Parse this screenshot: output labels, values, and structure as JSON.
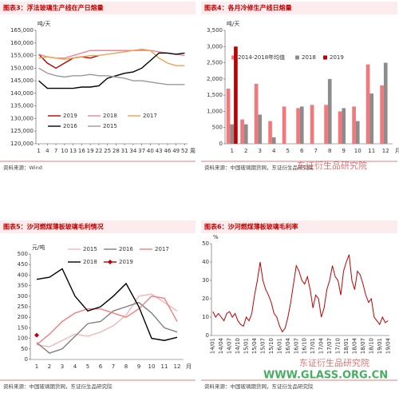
{
  "watermarks": [
    "东证衍生品研究院",
    "WWW.GLASS.ORG.CN"
  ],
  "chart_data": [
    {
      "type": "line",
      "title": "图表3：浮法玻璃生产线在产日熔量",
      "y_label": "吨/天",
      "x_label": "周",
      "source": "资料来源：Wind",
      "x": [
        1,
        4,
        7,
        10,
        13,
        16,
        19,
        22,
        25,
        28,
        31,
        34,
        37,
        40,
        43,
        46,
        49,
        52
      ],
      "xlim": [
        0,
        53
      ],
      "xticks": [
        1,
        4,
        7,
        10,
        13,
        16,
        19,
        22,
        25,
        28,
        31,
        34,
        37,
        40,
        43,
        46,
        49,
        52
      ],
      "ylim": [
        120000,
        165000
      ],
      "yticks": [
        {
          "value": 120000,
          "label": "120,000"
        },
        {
          "value": 125000,
          "label": "125,000"
        },
        {
          "value": 130000,
          "label": "130,000"
        },
        {
          "value": 135000,
          "label": "135,000"
        },
        {
          "value": 140000,
          "label": "140,000"
        },
        {
          "value": 145000,
          "label": "145,000"
        },
        {
          "value": 150000,
          "label": "150,000"
        },
        {
          "value": 155000,
          "label": "155,000"
        },
        {
          "value": 160000,
          "label": "160,000"
        },
        {
          "value": 165000,
          "label": "165,000"
        }
      ],
      "series": [
        {
          "name": "2019",
          "color": "#c00000",
          "values": [
            155500,
            152000,
            150000,
            152000,
            154000,
            154500,
            154000,
            155000,
            null,
            null,
            null,
            null,
            null,
            null,
            null,
            null,
            null,
            null
          ]
        },
        {
          "name": "2018",
          "color": "#e8898f",
          "values": [
            155500,
            154500,
            154000,
            154000,
            155000,
            156000,
            157000,
            157000,
            157000,
            157000,
            157000,
            157000,
            157500,
            157000,
            156500,
            156000,
            155500,
            155000
          ]
        },
        {
          "name": "2017",
          "color": "#f0a050",
          "values": [
            154000,
            154500,
            154000,
            153500,
            154000,
            154500,
            155000,
            155000,
            155500,
            156000,
            156500,
            157000,
            157000,
            157000,
            154000,
            152000,
            151000,
            151000
          ]
        },
        {
          "name": "2016",
          "color": "#000000",
          "values": [
            145000,
            142000,
            142000,
            142000,
            142000,
            142500,
            142500,
            143000,
            146000,
            147000,
            148000,
            148500,
            150000,
            153000,
            156000,
            156000,
            155500,
            156000
          ]
        },
        {
          "name": "2015",
          "color": "#999999",
          "values": [
            150000,
            148000,
            147000,
            146500,
            147000,
            147000,
            147500,
            147000,
            147000,
            146500,
            146000,
            145000,
            145000,
            144500,
            144000,
            143500,
            143500,
            143500
          ]
        }
      ]
    },
    {
      "type": "bar",
      "title": "图表4：各月冷修生产线日熔量",
      "y_label": "吨/天",
      "x_label": "月",
      "source": "资料来源：中国玻璃期货网，东证衍生品研究院",
      "categories": [
        "1",
        "2",
        "3",
        "4",
        "5",
        "6",
        "7",
        "8",
        "9",
        "10",
        "11",
        "12"
      ],
      "ylim": [
        0,
        3500
      ],
      "yticks": [
        0,
        500,
        {
          "value": 1000,
          "label": "1,000"
        },
        {
          "value": 1500,
          "label": "1,500"
        },
        {
          "value": 2000,
          "label": "2,000"
        },
        {
          "value": 2500,
          "label": "2,500"
        },
        {
          "value": 3000,
          "label": "3,000"
        },
        {
          "value": 3500,
          "label": "3,500"
        }
      ],
      "series": [
        {
          "name": "2014-2018年均值",
          "color": "#f4777c",
          "values": [
            1700,
            750,
            1850,
            700,
            1150,
            1100,
            1200,
            1200,
            1000,
            1150,
            2450,
            1800
          ]
        },
        {
          "name": "2018",
          "color": "#8c8c8c",
          "values": [
            600,
            600,
            900,
            200,
            null,
            1150,
            null,
            2000,
            1100,
            700,
            1550,
            2500
          ]
        },
        {
          "name": "2019",
          "color": "#c00000",
          "values": [
            3000,
            null,
            null,
            null,
            null,
            null,
            null,
            null,
            null,
            null,
            null,
            null
          ]
        }
      ]
    },
    {
      "type": "line",
      "title": "图表5：沙河燃煤薄板玻璃毛利情况",
      "y_label": "元/吨",
      "x_label": "月",
      "source": "资料来源：中国玻璃期货网，东证衍生品研究院",
      "categories": [
        "1",
        "2",
        "3",
        "4",
        "5",
        "6",
        "7",
        "8",
        "9",
        "10",
        "11",
        "12"
      ],
      "ylim": [
        0,
        500
      ],
      "yticks": [
        0,
        50,
        100,
        150,
        200,
        250,
        300,
        350,
        400,
        450,
        500
      ],
      "series": [
        {
          "name": "2015",
          "color": "#f4b6b9",
          "values": [
            70,
            60,
            90,
            120,
            110,
            130,
            160,
            210,
            300,
            310,
            270,
            230
          ]
        },
        {
          "name": "2016",
          "color": "#808080",
          "values": [
            80,
            30,
            50,
            110,
            170,
            180,
            230,
            250,
            270,
            220,
            150,
            130
          ]
        },
        {
          "name": "2017",
          "color": "#f08080",
          "values": [
            70,
            120,
            180,
            220,
            240,
            240,
            220,
            200,
            240,
            300,
            290,
            180
          ]
        },
        {
          "name": "2018",
          "color": "#000000",
          "values": [
            380,
            390,
            430,
            300,
            230,
            250,
            300,
            360,
            250,
            100,
            90,
            105
          ]
        },
        {
          "name": "2019",
          "color": "#c00000",
          "marker": "diamond",
          "values": [
            115,
            null,
            null,
            null,
            null,
            null,
            null,
            null,
            null,
            null,
            null,
            null
          ]
        }
      ]
    },
    {
      "type": "line",
      "title": "图表6：沙河燃煤薄板玻璃毛利率",
      "y_label": "%",
      "source": "资料来源：中国玻璃期货网，东证衍生品研究院",
      "categories": [
        "14/01",
        null,
        null,
        "14/04",
        null,
        null,
        "14/07",
        null,
        null,
        "14/10",
        null,
        null,
        "15/01",
        null,
        null,
        "15/04",
        null,
        null,
        "15/07",
        null,
        null,
        "15/10",
        null,
        null,
        "16/01",
        null,
        null,
        "16/04",
        null,
        null,
        "16/07",
        null,
        null,
        "16/10",
        null,
        null,
        "17/01",
        null,
        null,
        "17/04",
        null,
        null,
        "17/07",
        null,
        null,
        "17/10",
        null,
        null,
        "18/01",
        null,
        null,
        "18/04",
        null,
        null,
        "18/07",
        null,
        null,
        "18/10",
        null,
        null,
        "19/01",
        null,
        null,
        "19/04"
      ],
      "ylim": [
        0,
        50
      ],
      "yticks": [
        0,
        10,
        20,
        30,
        40,
        50
      ],
      "series": [
        {
          "name": "毛利率",
          "color": "#c00000",
          "values": [
            13,
            10,
            12,
            10,
            8,
            12,
            13,
            10,
            12,
            8,
            6,
            5,
            10,
            8,
            12,
            22,
            30,
            40,
            30,
            25,
            22,
            18,
            12,
            10,
            5,
            2,
            4,
            10,
            18,
            28,
            38,
            35,
            30,
            28,
            32,
            25,
            15,
            22,
            20,
            10,
            15,
            25,
            30,
            38,
            32,
            30,
            22,
            35,
            40,
            44,
            30,
            25,
            35,
            33,
            28,
            22,
            18,
            20,
            10,
            8,
            6,
            10,
            7,
            8
          ]
        }
      ]
    }
  ]
}
